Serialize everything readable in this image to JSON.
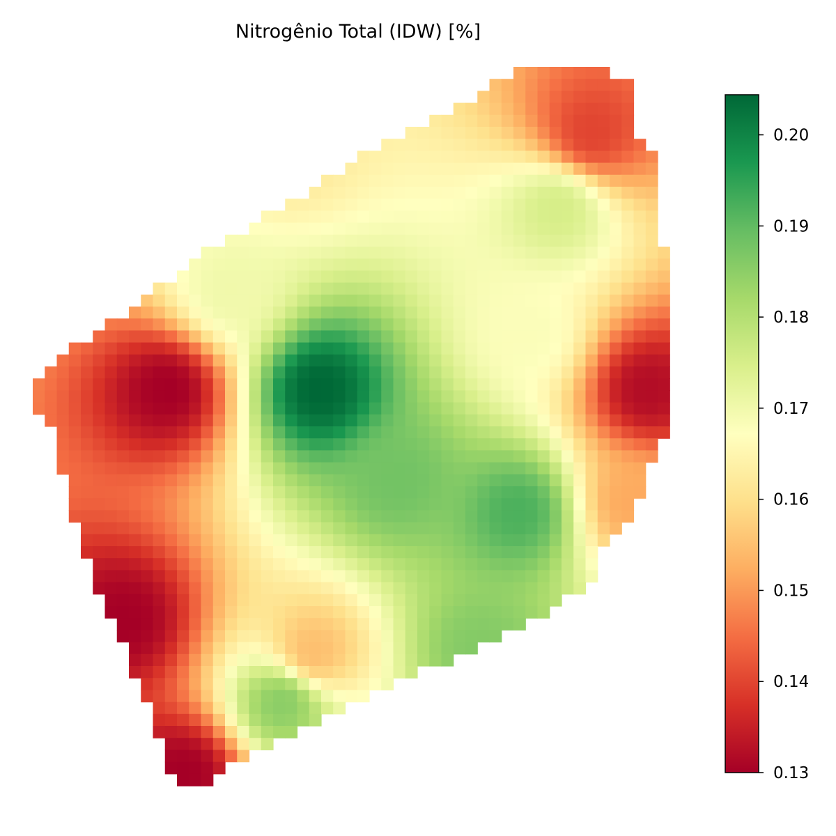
{
  "chart_data": {
    "type": "heatmap",
    "title": "Nitrogênio Total (IDW) [%]",
    "grid_shape": [
      60,
      53
    ],
    "axes_visible": false,
    "colormap": "RdYlGn",
    "colorbar": {
      "vmin": 0.13,
      "vmax": 0.2044,
      "ticks": [
        0.13,
        0.14,
        0.15,
        0.16,
        0.17,
        0.18,
        0.19,
        0.2
      ],
      "tick_labels": [
        "0.13",
        "0.14",
        "0.15",
        "0.16",
        "0.17",
        "0.18",
        "0.19",
        "0.20"
      ]
    },
    "field_anchors": [
      {
        "x": 17,
        "y": 8,
        "value": 0.2044,
        "note": "high center blob"
      },
      {
        "x": 22,
        "y": 6.5,
        "value": 0.192,
        "note": "high east patch"
      },
      {
        "x": 8,
        "y": 13,
        "value": 0.185,
        "note": "southwest patch"
      },
      {
        "x": 15,
        "y": 10,
        "value": 0.188
      },
      {
        "x": 23,
        "y": 17,
        "value": 0.186
      },
      {
        "x": 40,
        "y": 8,
        "value": 0.168
      },
      {
        "x": 46,
        "y": 7.5,
        "value": 0.17
      },
      {
        "x": 52.5,
        "y": 8,
        "value": 0.13,
        "note": "west edge low"
      },
      {
        "x": 7,
        "y": 5,
        "value": 0.162
      },
      {
        "x": 2,
        "y": 7,
        "value": 0.155
      },
      {
        "x": 3,
        "y": 14,
        "value": 0.14
      },
      {
        "x": 1,
        "y": 15,
        "value": 0.13,
        "note": "southwest corner low"
      },
      {
        "x": 55,
        "y": 14,
        "value": 0.13,
        "note": "north corner low"
      },
      {
        "x": 52,
        "y": 16,
        "value": 0.132
      },
      {
        "x": 44.5,
        "y": 15,
        "value": 0.152
      },
      {
        "x": 36,
        "y": 12,
        "value": 0.175
      }
    ]
  }
}
